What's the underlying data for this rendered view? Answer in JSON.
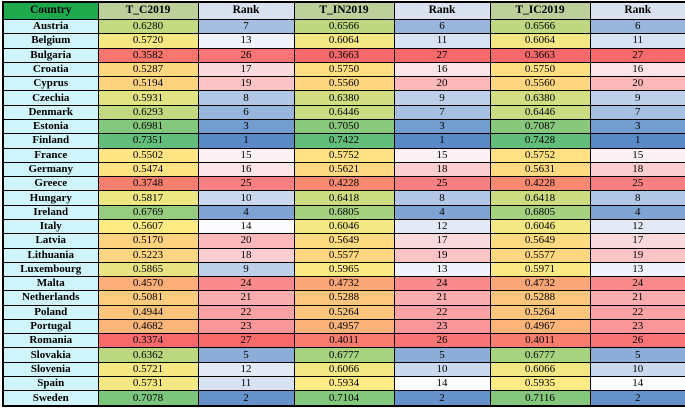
{
  "table": {
    "columns": [
      {
        "key": "country",
        "label": "Country",
        "type": "country"
      },
      {
        "key": "tc",
        "label": "T_C2019",
        "type": "value",
        "min": 0.3374,
        "mid": 0.5607,
        "max": 0.7351
      },
      {
        "key": "tc_rank",
        "label": "Rank",
        "type": "rank",
        "min": 1,
        "mid": 14,
        "max": 27
      },
      {
        "key": "tin",
        "label": "T_IN2019",
        "type": "value",
        "min": 0.3663,
        "mid": 0.5934,
        "max": 0.7422
      },
      {
        "key": "tin_rank",
        "label": "Rank",
        "type": "rank",
        "min": 1,
        "mid": 14,
        "max": 27
      },
      {
        "key": "tic",
        "label": "T_IC2019",
        "type": "value",
        "min": 0.3663,
        "mid": 0.5935,
        "max": 0.7428
      },
      {
        "key": "tic_rank",
        "label": "Rank",
        "type": "rank",
        "min": 1,
        "mid": 14,
        "max": 27
      }
    ],
    "rows": [
      {
        "country": "Austria",
        "tc": "0.6280",
        "tc_rank": "7",
        "tin": "0.6566",
        "tin_rank": "6",
        "tic": "0.6566",
        "tic_rank": "6"
      },
      {
        "country": "Belgium",
        "tc": "0.5720",
        "tc_rank": "13",
        "tin": "0.6064",
        "tin_rank": "11",
        "tic": "0.6064",
        "tic_rank": "11"
      },
      {
        "country": "Bulgaria",
        "tc": "0.3582",
        "tc_rank": "26",
        "tin": "0.3663",
        "tin_rank": "27",
        "tic": "0.3663",
        "tic_rank": "27"
      },
      {
        "country": "Croatia",
        "tc": "0.5287",
        "tc_rank": "17",
        "tin": "0.5750",
        "tin_rank": "16",
        "tic": "0.5750",
        "tic_rank": "16"
      },
      {
        "country": "Cyprus",
        "tc": "0.5194",
        "tc_rank": "19",
        "tin": "0.5560",
        "tin_rank": "20",
        "tic": "0.5560",
        "tic_rank": "20"
      },
      {
        "country": "Czechia",
        "tc": "0.5931",
        "tc_rank": "8",
        "tin": "0.6380",
        "tin_rank": "9",
        "tic": "0.6380",
        "tic_rank": "9"
      },
      {
        "country": "Denmark",
        "tc": "0.6293",
        "tc_rank": "6",
        "tin": "0.6446",
        "tin_rank": "7",
        "tic": "0.6446",
        "tic_rank": "7"
      },
      {
        "country": "Estonia",
        "tc": "0.6981",
        "tc_rank": "3",
        "tin": "0.7050",
        "tin_rank": "3",
        "tic": "0.7087",
        "tic_rank": "3"
      },
      {
        "country": "Finland",
        "tc": "0.7351",
        "tc_rank": "1",
        "tin": "0.7422",
        "tin_rank": "1",
        "tic": "0.7428",
        "tic_rank": "1"
      },
      {
        "country": "France",
        "tc": "0.5502",
        "tc_rank": "15",
        "tin": "0.5752",
        "tin_rank": "15",
        "tic": "0.5752",
        "tic_rank": "15"
      },
      {
        "country": "Germany",
        "tc": "0.5474",
        "tc_rank": "16",
        "tin": "0.5621",
        "tin_rank": "18",
        "tic": "0.5631",
        "tic_rank": "18"
      },
      {
        "country": "Greece",
        "tc": "0.3748",
        "tc_rank": "25",
        "tin": "0.4228",
        "tin_rank": "25",
        "tic": "0.4228",
        "tic_rank": "25"
      },
      {
        "country": "Hungary",
        "tc": "0.5817",
        "tc_rank": "10",
        "tin": "0.6418",
        "tin_rank": "8",
        "tic": "0.6418",
        "tic_rank": "8"
      },
      {
        "country": "Ireland",
        "tc": "0.6769",
        "tc_rank": "4",
        "tin": "0.6805",
        "tin_rank": "4",
        "tic": "0.6805",
        "tic_rank": "4"
      },
      {
        "country": "Italy",
        "tc": "0.5607",
        "tc_rank": "14",
        "tin": "0.6046",
        "tin_rank": "12",
        "tic": "0.6046",
        "tic_rank": "12"
      },
      {
        "country": "Latvia",
        "tc": "0.5170",
        "tc_rank": "20",
        "tin": "0.5649",
        "tin_rank": "17",
        "tic": "0.5649",
        "tic_rank": "17"
      },
      {
        "country": "Lithuania",
        "tc": "0.5223",
        "tc_rank": "18",
        "tin": "0.5577",
        "tin_rank": "19",
        "tic": "0.5577",
        "tic_rank": "19"
      },
      {
        "country": "Luxembourg",
        "tc": "0.5865",
        "tc_rank": "9",
        "tin": "0.5965",
        "tin_rank": "13",
        "tic": "0.5971",
        "tic_rank": "13"
      },
      {
        "country": "Malta",
        "tc": "0.4570",
        "tc_rank": "24",
        "tin": "0.4732",
        "tin_rank": "24",
        "tic": "0.4732",
        "tic_rank": "24"
      },
      {
        "country": "Netherlands",
        "tc": "0.5081",
        "tc_rank": "21",
        "tin": "0.5288",
        "tin_rank": "21",
        "tic": "0.5288",
        "tic_rank": "21"
      },
      {
        "country": "Poland",
        "tc": "0.4944",
        "tc_rank": "22",
        "tin": "0.5264",
        "tin_rank": "22",
        "tic": "0.5264",
        "tic_rank": "22"
      },
      {
        "country": "Portugal",
        "tc": "0.4682",
        "tc_rank": "23",
        "tin": "0.4957",
        "tin_rank": "23",
        "tic": "0.4967",
        "tic_rank": "23"
      },
      {
        "country": "Romania",
        "tc": "0.3374",
        "tc_rank": "27",
        "tin": "0.4011",
        "tin_rank": "26",
        "tic": "0.4011",
        "tic_rank": "26"
      },
      {
        "country": "Slovakia",
        "tc": "0.6362",
        "tc_rank": "5",
        "tin": "0.6777",
        "tin_rank": "5",
        "tic": "0.6777",
        "tic_rank": "5"
      },
      {
        "country": "Slovenia",
        "tc": "0.5721",
        "tc_rank": "12",
        "tin": "0.6066",
        "tin_rank": "10",
        "tic": "0.6066",
        "tic_rank": "10"
      },
      {
        "country": "Spain",
        "tc": "0.5731",
        "tc_rank": "11",
        "tin": "0.5934",
        "tin_rank": "14",
        "tic": "0.5935",
        "tic_rank": "14"
      },
      {
        "country": "Sweden",
        "tc": "0.7078",
        "tc_rank": "2",
        "tin": "0.7104",
        "tin_rank": "2",
        "tic": "0.7116",
        "tic_rank": "2"
      }
    ]
  },
  "colors": {
    "header_country_bg": "#1FA94D",
    "header_value_bg": "#BDCF9B",
    "header_rank_bg": "#D9E1EE",
    "country_cell_bg": "#CFF4F9",
    "value_scale": {
      "min": "#F8696B",
      "mid": "#FFEB84",
      "max": "#63BE7B"
    },
    "rank_scale": {
      "min": "#5A8AC6",
      "mid": "#FCFCFF",
      "max": "#F8696B"
    },
    "border": "#000000"
  }
}
